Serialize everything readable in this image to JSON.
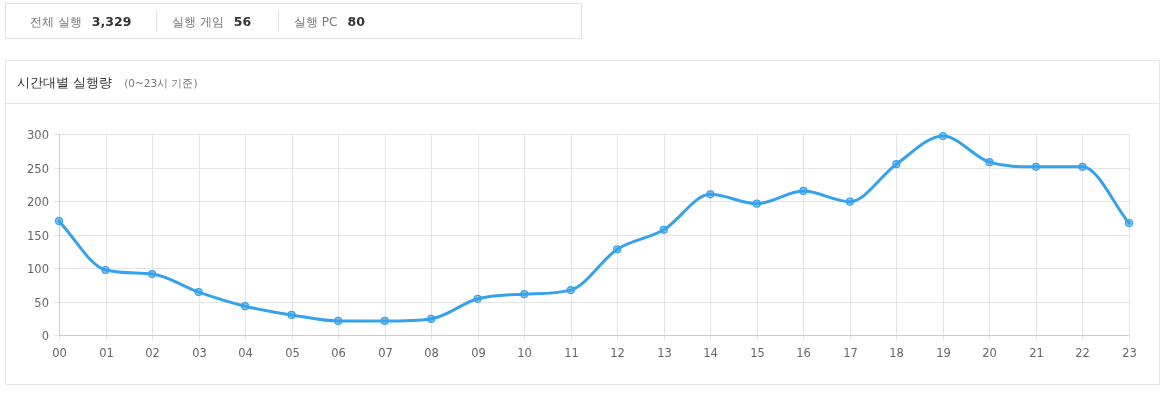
{
  "chart_data": [
    {
      "type": "other",
      "annotations": [
        "전체 실행",
        "3,329",
        "실행 게임",
        "56",
        "실행 PC",
        "80"
      ]
    },
    {
      "type": "line",
      "title": "시간대별 실행량",
      "subtitle": "(0~23시 기준)",
      "categories": [
        "00",
        "01",
        "02",
        "03",
        "04",
        "05",
        "06",
        "07",
        "08",
        "09",
        "10",
        "11",
        "12",
        "13",
        "14",
        "15",
        "16",
        "17",
        "18",
        "19",
        "20",
        "21",
        "22",
        "23"
      ],
      "series": [
        {
          "color": "#36a2eb",
          "values": [
            170,
            97,
            91,
            64,
            43,
            30,
            21,
            21,
            24,
            54,
            61,
            67,
            128,
            157,
            210,
            196,
            215,
            199,
            255,
            297,
            258,
            251,
            251,
            167
          ]
        }
      ],
      "ylim": [
        0,
        300
      ],
      "yticks": [
        0,
        50,
        100,
        150,
        200,
        250,
        300
      ],
      "grid": true,
      "marker": "circle",
      "line_style": "solid"
    }
  ]
}
